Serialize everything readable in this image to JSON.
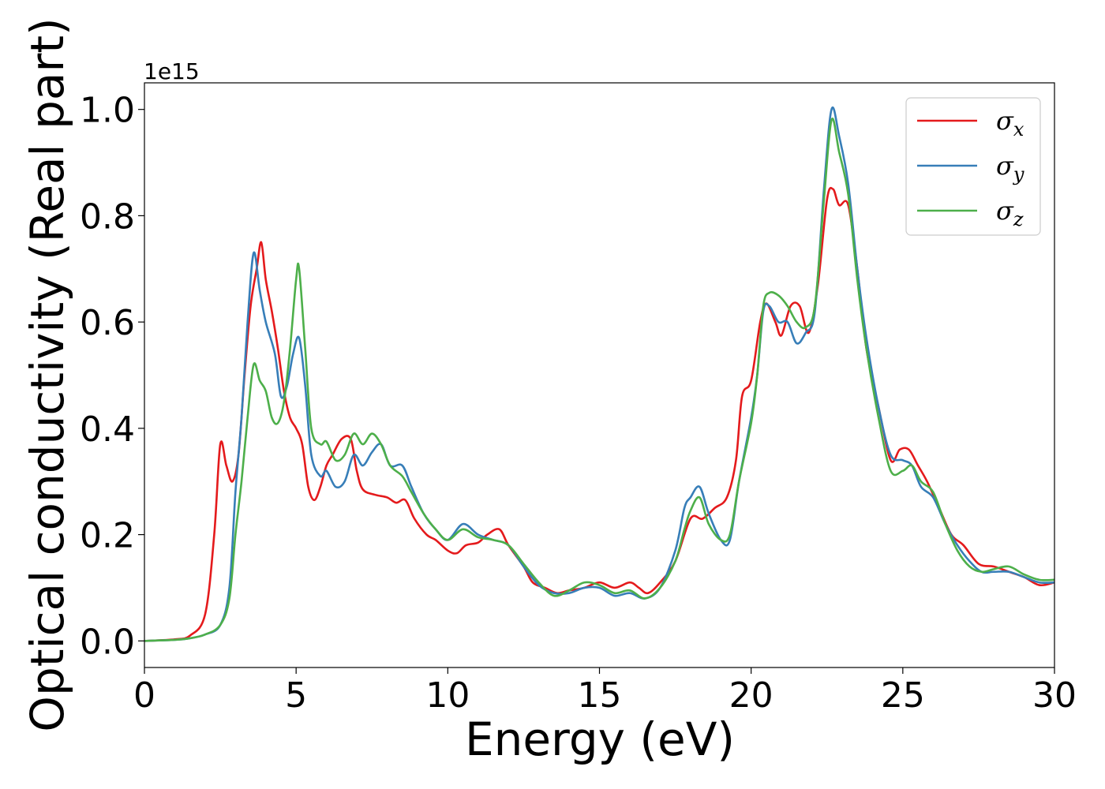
{
  "chart_data": {
    "type": "line",
    "title": "",
    "xlabel": "Energy (eV)",
    "ylabel": "Optical conductivity (Real part)",
    "y_offset_label": "1e15",
    "xlim": [
      0,
      30
    ],
    "ylim": [
      -0.05,
      1.05
    ],
    "x_ticks": [
      0,
      5,
      10,
      15,
      20,
      25,
      30
    ],
    "x_tick_labels": [
      "0",
      "5",
      "10",
      "15",
      "20",
      "25",
      "30"
    ],
    "y_ticks": [
      0.0,
      0.2,
      0.4,
      0.6,
      0.8,
      1.0
    ],
    "y_tick_labels": [
      "0.0",
      "0.2",
      "0.4",
      "0.6",
      "0.8",
      "1.0"
    ],
    "grid": false,
    "legend_position": "top-right",
    "series": [
      {
        "name": "σ",
        "subscript": "x",
        "color": "#e41a1c",
        "points": [
          [
            0,
            0
          ],
          [
            1,
            0.003
          ],
          [
            1.5,
            0.01
          ],
          [
            2,
            0.05
          ],
          [
            2.3,
            0.2
          ],
          [
            2.5,
            0.37
          ],
          [
            2.7,
            0.33
          ],
          [
            2.9,
            0.3
          ],
          [
            3.1,
            0.35
          ],
          [
            3.3,
            0.5
          ],
          [
            3.5,
            0.63
          ],
          [
            3.7,
            0.7
          ],
          [
            3.85,
            0.75
          ],
          [
            4,
            0.68
          ],
          [
            4.2,
            0.62
          ],
          [
            4.4,
            0.55
          ],
          [
            4.6,
            0.47
          ],
          [
            4.8,
            0.42
          ],
          [
            5,
            0.4
          ],
          [
            5.2,
            0.37
          ],
          [
            5.4,
            0.29
          ],
          [
            5.6,
            0.265
          ],
          [
            5.8,
            0.29
          ],
          [
            6,
            0.33
          ],
          [
            6.2,
            0.35
          ],
          [
            6.5,
            0.38
          ],
          [
            6.8,
            0.38
          ],
          [
            7,
            0.32
          ],
          [
            7.2,
            0.285
          ],
          [
            7.6,
            0.275
          ],
          [
            8,
            0.27
          ],
          [
            8.3,
            0.26
          ],
          [
            8.6,
            0.265
          ],
          [
            8.9,
            0.23
          ],
          [
            9.3,
            0.2
          ],
          [
            9.6,
            0.19
          ],
          [
            10,
            0.17
          ],
          [
            10.3,
            0.165
          ],
          [
            10.6,
            0.18
          ],
          [
            11,
            0.185
          ],
          [
            11.3,
            0.2
          ],
          [
            11.7,
            0.21
          ],
          [
            12,
            0.18
          ],
          [
            12.5,
            0.14
          ],
          [
            12.8,
            0.11
          ],
          [
            13.2,
            0.1
          ],
          [
            13.6,
            0.09
          ],
          [
            14,
            0.095
          ],
          [
            14.5,
            0.1
          ],
          [
            15,
            0.11
          ],
          [
            15.5,
            0.1
          ],
          [
            16,
            0.11
          ],
          [
            16.3,
            0.1
          ],
          [
            16.6,
            0.09
          ],
          [
            17,
            0.11
          ],
          [
            17.5,
            0.15
          ],
          [
            18,
            0.23
          ],
          [
            18.4,
            0.23
          ],
          [
            18.8,
            0.25
          ],
          [
            19.2,
            0.27
          ],
          [
            19.5,
            0.34
          ],
          [
            19.7,
            0.46
          ],
          [
            20,
            0.49
          ],
          [
            20.3,
            0.6
          ],
          [
            20.5,
            0.635
          ],
          [
            20.8,
            0.6
          ],
          [
            21,
            0.575
          ],
          [
            21.3,
            0.63
          ],
          [
            21.6,
            0.63
          ],
          [
            21.9,
            0.58
          ],
          [
            22.2,
            0.67
          ],
          [
            22.5,
            0.83
          ],
          [
            22.7,
            0.85
          ],
          [
            22.9,
            0.82
          ],
          [
            23.2,
            0.82
          ],
          [
            23.5,
            0.7
          ],
          [
            23.8,
            0.55
          ],
          [
            24.2,
            0.44
          ],
          [
            24.6,
            0.34
          ],
          [
            24.9,
            0.36
          ],
          [
            25.2,
            0.36
          ],
          [
            25.5,
            0.33
          ],
          [
            25.8,
            0.3
          ],
          [
            26.2,
            0.25
          ],
          [
            26.6,
            0.2
          ],
          [
            27,
            0.18
          ],
          [
            27.5,
            0.145
          ],
          [
            28,
            0.14
          ],
          [
            28.5,
            0.13
          ],
          [
            29,
            0.12
          ],
          [
            29.5,
            0.105
          ],
          [
            30,
            0.11
          ]
        ]
      },
      {
        "name": "σ",
        "subscript": "y",
        "color": "#377eb8",
        "points": [
          [
            0,
            0
          ],
          [
            1,
            0.002
          ],
          [
            1.5,
            0.005
          ],
          [
            2,
            0.012
          ],
          [
            2.5,
            0.03
          ],
          [
            2.8,
            0.1
          ],
          [
            3,
            0.28
          ],
          [
            3.2,
            0.42
          ],
          [
            3.4,
            0.6
          ],
          [
            3.6,
            0.73
          ],
          [
            3.8,
            0.66
          ],
          [
            4,
            0.6
          ],
          [
            4.3,
            0.54
          ],
          [
            4.5,
            0.46
          ],
          [
            4.7,
            0.48
          ],
          [
            4.9,
            0.54
          ],
          [
            5.1,
            0.57
          ],
          [
            5.3,
            0.48
          ],
          [
            5.5,
            0.35
          ],
          [
            5.8,
            0.31
          ],
          [
            6,
            0.32
          ],
          [
            6.3,
            0.29
          ],
          [
            6.6,
            0.3
          ],
          [
            6.9,
            0.35
          ],
          [
            7.2,
            0.33
          ],
          [
            7.5,
            0.355
          ],
          [
            7.8,
            0.37
          ],
          [
            8.1,
            0.33
          ],
          [
            8.5,
            0.33
          ],
          [
            8.8,
            0.29
          ],
          [
            9.2,
            0.24
          ],
          [
            9.6,
            0.21
          ],
          [
            10,
            0.19
          ],
          [
            10.5,
            0.22
          ],
          [
            11,
            0.2
          ],
          [
            11.5,
            0.19
          ],
          [
            12,
            0.18
          ],
          [
            12.5,
            0.14
          ],
          [
            13,
            0.105
          ],
          [
            13.5,
            0.09
          ],
          [
            14,
            0.09
          ],
          [
            14.5,
            0.1
          ],
          [
            15,
            0.1
          ],
          [
            15.5,
            0.085
          ],
          [
            16,
            0.09
          ],
          [
            16.5,
            0.08
          ],
          [
            17,
            0.1
          ],
          [
            17.5,
            0.17
          ],
          [
            17.8,
            0.25
          ],
          [
            18,
            0.27
          ],
          [
            18.3,
            0.29
          ],
          [
            18.6,
            0.24
          ],
          [
            19,
            0.19
          ],
          [
            19.3,
            0.19
          ],
          [
            19.6,
            0.3
          ],
          [
            20,
            0.42
          ],
          [
            20.2,
            0.5
          ],
          [
            20.4,
            0.62
          ],
          [
            20.6,
            0.63
          ],
          [
            20.9,
            0.6
          ],
          [
            21.2,
            0.6
          ],
          [
            21.5,
            0.56
          ],
          [
            21.8,
            0.58
          ],
          [
            22.1,
            0.62
          ],
          [
            22.4,
            0.85
          ],
          [
            22.65,
            1.0
          ],
          [
            22.9,
            0.95
          ],
          [
            23.2,
            0.86
          ],
          [
            23.5,
            0.7
          ],
          [
            23.8,
            0.57
          ],
          [
            24.2,
            0.44
          ],
          [
            24.6,
            0.35
          ],
          [
            25,
            0.34
          ],
          [
            25.3,
            0.33
          ],
          [
            25.6,
            0.29
          ],
          [
            26,
            0.27
          ],
          [
            26.4,
            0.22
          ],
          [
            26.8,
            0.18
          ],
          [
            27.2,
            0.15
          ],
          [
            27.6,
            0.13
          ],
          [
            28,
            0.13
          ],
          [
            28.5,
            0.13
          ],
          [
            29,
            0.12
          ],
          [
            29.5,
            0.11
          ],
          [
            30,
            0.11
          ]
        ]
      },
      {
        "name": "σ",
        "subscript": "z",
        "color": "#4daf4a",
        "points": [
          [
            0,
            0
          ],
          [
            1,
            0.002
          ],
          [
            1.5,
            0.005
          ],
          [
            2,
            0.012
          ],
          [
            2.5,
            0.03
          ],
          [
            2.8,
            0.08
          ],
          [
            3,
            0.2
          ],
          [
            3.2,
            0.3
          ],
          [
            3.4,
            0.42
          ],
          [
            3.6,
            0.52
          ],
          [
            3.8,
            0.49
          ],
          [
            4,
            0.47
          ],
          [
            4.2,
            0.42
          ],
          [
            4.4,
            0.41
          ],
          [
            4.6,
            0.45
          ],
          [
            4.8,
            0.55
          ],
          [
            5,
            0.68
          ],
          [
            5.1,
            0.7
          ],
          [
            5.3,
            0.55
          ],
          [
            5.5,
            0.4
          ],
          [
            5.8,
            0.37
          ],
          [
            6,
            0.375
          ],
          [
            6.3,
            0.34
          ],
          [
            6.6,
            0.35
          ],
          [
            6.9,
            0.39
          ],
          [
            7.2,
            0.37
          ],
          [
            7.5,
            0.39
          ],
          [
            7.8,
            0.37
          ],
          [
            8.1,
            0.33
          ],
          [
            8.5,
            0.31
          ],
          [
            8.8,
            0.28
          ],
          [
            9.2,
            0.24
          ],
          [
            9.6,
            0.21
          ],
          [
            10,
            0.19
          ],
          [
            10.5,
            0.21
          ],
          [
            11,
            0.195
          ],
          [
            11.5,
            0.19
          ],
          [
            12,
            0.18
          ],
          [
            12.5,
            0.145
          ],
          [
            13,
            0.11
          ],
          [
            13.5,
            0.085
          ],
          [
            14,
            0.095
          ],
          [
            14.5,
            0.11
          ],
          [
            15,
            0.105
          ],
          [
            15.5,
            0.09
          ],
          [
            16,
            0.095
          ],
          [
            16.5,
            0.08
          ],
          [
            17,
            0.1
          ],
          [
            17.5,
            0.15
          ],
          [
            17.8,
            0.21
          ],
          [
            18,
            0.245
          ],
          [
            18.3,
            0.27
          ],
          [
            18.6,
            0.22
          ],
          [
            19,
            0.19
          ],
          [
            19.3,
            0.2
          ],
          [
            19.6,
            0.3
          ],
          [
            20,
            0.41
          ],
          [
            20.2,
            0.5
          ],
          [
            20.4,
            0.63
          ],
          [
            20.6,
            0.655
          ],
          [
            20.9,
            0.65
          ],
          [
            21.2,
            0.63
          ],
          [
            21.5,
            0.6
          ],
          [
            21.8,
            0.59
          ],
          [
            22.1,
            0.63
          ],
          [
            22.4,
            0.83
          ],
          [
            22.65,
            0.98
          ],
          [
            22.9,
            0.92
          ],
          [
            23.2,
            0.84
          ],
          [
            23.5,
            0.68
          ],
          [
            23.8,
            0.55
          ],
          [
            24.2,
            0.42
          ],
          [
            24.6,
            0.32
          ],
          [
            25,
            0.32
          ],
          [
            25.3,
            0.33
          ],
          [
            25.6,
            0.3
          ],
          [
            26,
            0.28
          ],
          [
            26.4,
            0.22
          ],
          [
            26.8,
            0.17
          ],
          [
            27.2,
            0.14
          ],
          [
            27.6,
            0.13
          ],
          [
            28,
            0.135
          ],
          [
            28.5,
            0.14
          ],
          [
            29,
            0.125
          ],
          [
            29.5,
            0.115
          ],
          [
            30,
            0.115
          ]
        ]
      }
    ]
  }
}
